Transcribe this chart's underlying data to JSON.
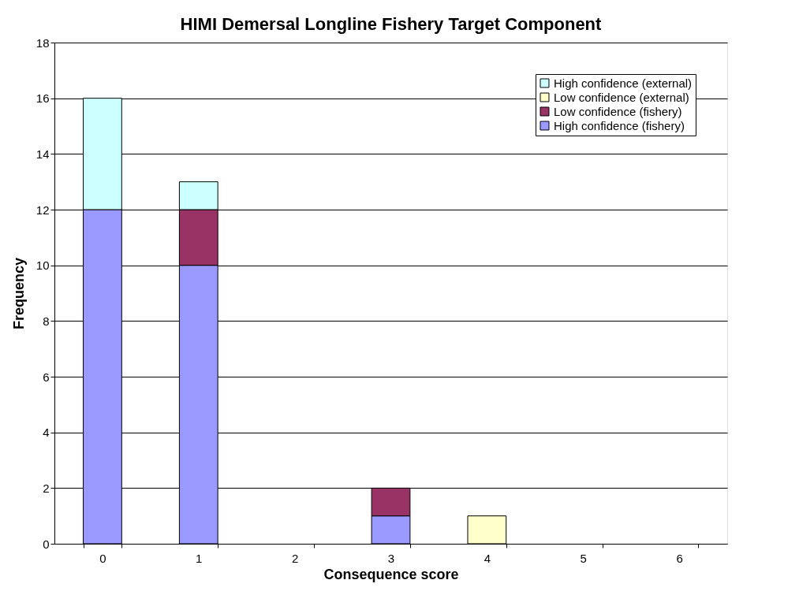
{
  "chart_data": {
    "type": "bar",
    "title": "HIMI Demersal Longline Fishery Target Component",
    "xlabel": "Consequence score",
    "ylabel": "Frequency",
    "categories": [
      "0",
      "1",
      "2",
      "3",
      "4",
      "5",
      "6"
    ],
    "stacked": true,
    "series": [
      {
        "name": "High confidence (fishery)",
        "color": "#9999ff",
        "values": [
          12,
          10,
          null,
          1,
          null,
          null,
          null
        ]
      },
      {
        "name": "Low confidence (fishery)",
        "color": "#993366",
        "values": [
          null,
          2,
          null,
          1,
          null,
          null,
          null
        ]
      },
      {
        "name": "Low confidence (external)",
        "color": "#ffffcc",
        "values": [
          null,
          null,
          null,
          null,
          1,
          null,
          null
        ]
      },
      {
        "name": "High confidence (external)",
        "color": "#ccffff",
        "values": [
          4,
          1,
          null,
          null,
          null,
          null,
          null
        ]
      }
    ],
    "ylim": [
      0,
      18
    ],
    "yticks": [
      0,
      2,
      4,
      6,
      8,
      10,
      12,
      14,
      16,
      18
    ],
    "grid": "y",
    "legend": "top right"
  }
}
